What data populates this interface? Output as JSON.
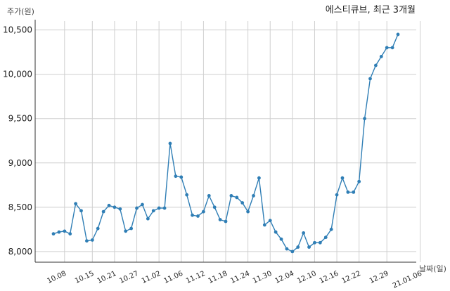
{
  "chart_data": {
    "type": "line",
    "title": "에스티큐브, 최근 3개월",
    "ylabel": "주가(원)",
    "xlabel": "날짜(일)",
    "ylim": [
      7880,
      10600
    ],
    "yticks": [
      8000,
      8500,
      9000,
      9500,
      10000,
      10500
    ],
    "ytick_labels": [
      "8,000",
      "8,500",
      "9,000",
      "9,500",
      "10,000",
      "10,500"
    ],
    "xtick_labels": [
      "10.08",
      "10.15",
      "10.21",
      "10.27",
      "11.02",
      "11.06",
      "11.12",
      "11.18",
      "11.24",
      "11.30",
      "12.04",
      "12.10",
      "12.16",
      "12.22",
      "12.29",
      "21.01.06"
    ],
    "xtick_index": [
      2,
      7,
      11,
      15,
      19,
      23,
      27,
      31,
      35,
      39,
      43,
      47,
      51,
      55,
      60,
      66
    ],
    "grid": true,
    "color": "#2f7eb5",
    "series": [
      {
        "values": [
          8200,
          8220,
          8230,
          8200,
          8540,
          8460,
          8120,
          8130,
          8260,
          8450,
          8520,
          8500,
          8480,
          8230,
          8260,
          8490,
          8530,
          8370,
          8460,
          8490,
          8490,
          9220,
          8850,
          8840,
          8640,
          8410,
          8400,
          8450,
          8630,
          8500,
          8360,
          8340,
          8630,
          8610,
          8550,
          8450,
          8630,
          8830,
          8300,
          8350,
          8220,
          8140,
          8030,
          8000,
          8050,
          8210,
          8050,
          8100,
          8100,
          8160,
          8250,
          8640,
          8830,
          8670,
          8670,
          8790,
          9500,
          9950,
          10100,
          10200,
          10300,
          10300,
          10450
        ]
      }
    ]
  }
}
